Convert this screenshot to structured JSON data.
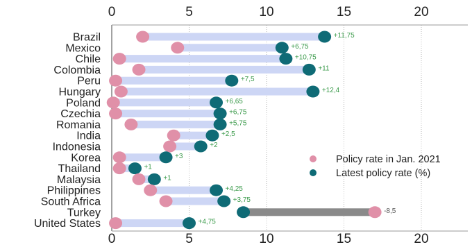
{
  "chart_data": {
    "type": "dumbbell",
    "xlim": [
      0,
      20
    ],
    "x_ticks": [
      "0",
      "5",
      "10",
      "15",
      "20"
    ],
    "x_tick_values": [
      0,
      5,
      10,
      15,
      20
    ],
    "grid": "vertical dotted",
    "legend_position": "right",
    "series": [
      {
        "name": "Policy rate in Jan. 2021",
        "color": "#e090a8"
      },
      {
        "name": "Latest policy rate (%)",
        "color": "#0f6b76"
      }
    ],
    "bar_color": "#cdd6f5",
    "negative_bar_color": "#8a8a8a",
    "label_color_positive": "#3a9a4a",
    "label_color_negative": "#555555",
    "categories": [
      "Brazil",
      "Mexico",
      "Chile",
      "Colombia",
      "Peru",
      "Hungary",
      "Poland",
      "Czechia",
      "Romania",
      "India",
      "Indonesia",
      "Korea",
      "Thailand",
      "Malaysia",
      "Philippines",
      "South Africa",
      "Turkey",
      "United States"
    ],
    "jan2021": [
      2.0,
      4.25,
      0.5,
      1.75,
      0.25,
      0.6,
      0.1,
      0.25,
      1.25,
      4.0,
      3.75,
      0.5,
      0.5,
      1.75,
      2.5,
      3.5,
      17.0,
      0.25
    ],
    "latest": [
      13.75,
      11.0,
      11.25,
      12.75,
      7.75,
      13.0,
      6.75,
      7.0,
      7.0,
      6.5,
      5.75,
      3.5,
      1.5,
      2.75,
      6.75,
      7.25,
      8.5,
      5.0
    ],
    "change_labels": [
      "+11,75",
      "+6,75",
      "+10,75",
      "+11",
      "+7,5",
      "+12,4",
      "+6,65",
      "+6,75",
      "+5,75",
      "+2,5",
      "+2",
      "+3",
      "+1",
      "+1",
      "+4,25",
      "+3,75",
      "-8,5",
      "+4,75"
    ]
  }
}
